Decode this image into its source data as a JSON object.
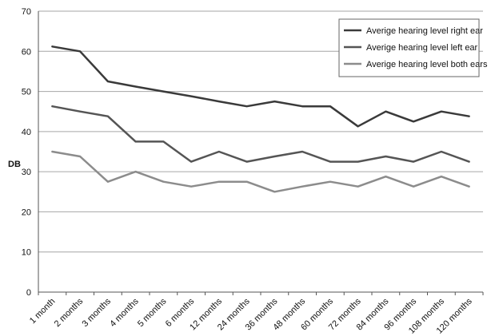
{
  "chart_data": {
    "type": "line",
    "title": "",
    "xlabel": "",
    "ylabel": "DB",
    "ylim": [
      0,
      70
    ],
    "yticks": [
      "0",
      "10",
      "20",
      "30",
      "40",
      "50",
      "60",
      "70"
    ],
    "grid": true,
    "legend_position": "top-right",
    "categories": [
      "1 month",
      "2 months",
      "3 months",
      "4 months",
      "5 months",
      "6 months",
      "12 months",
      "24 months",
      "36 months",
      "48 months",
      "60 months",
      "72 months",
      "84 months",
      "96 months",
      "108 months",
      "120 months"
    ],
    "series": [
      {
        "name": "Averige hearing level right ear",
        "color": "#3a3a3a",
        "values": [
          61.2,
          60,
          52.5,
          51.2,
          50,
          48.8,
          47.5,
          46.3,
          47.5,
          46.3,
          46.3,
          41.3,
          45,
          42.5,
          45,
          43.8
        ]
      },
      {
        "name": "Averige hearing level left ear",
        "color": "#555555",
        "values": [
          46.3,
          45,
          43.8,
          37.5,
          37.5,
          32.5,
          35,
          32.5,
          33.8,
          35,
          32.5,
          32.5,
          33.8,
          32.5,
          35,
          32.5
        ]
      },
      {
        "name": "Averige hearing level both ears",
        "color": "#8c8c8c",
        "values": [
          35,
          33.8,
          27.5,
          30,
          27.5,
          26.3,
          27.5,
          27.5,
          25,
          26.3,
          27.5,
          26.3,
          28.8,
          26.3,
          28.8,
          26.3
        ]
      }
    ]
  }
}
